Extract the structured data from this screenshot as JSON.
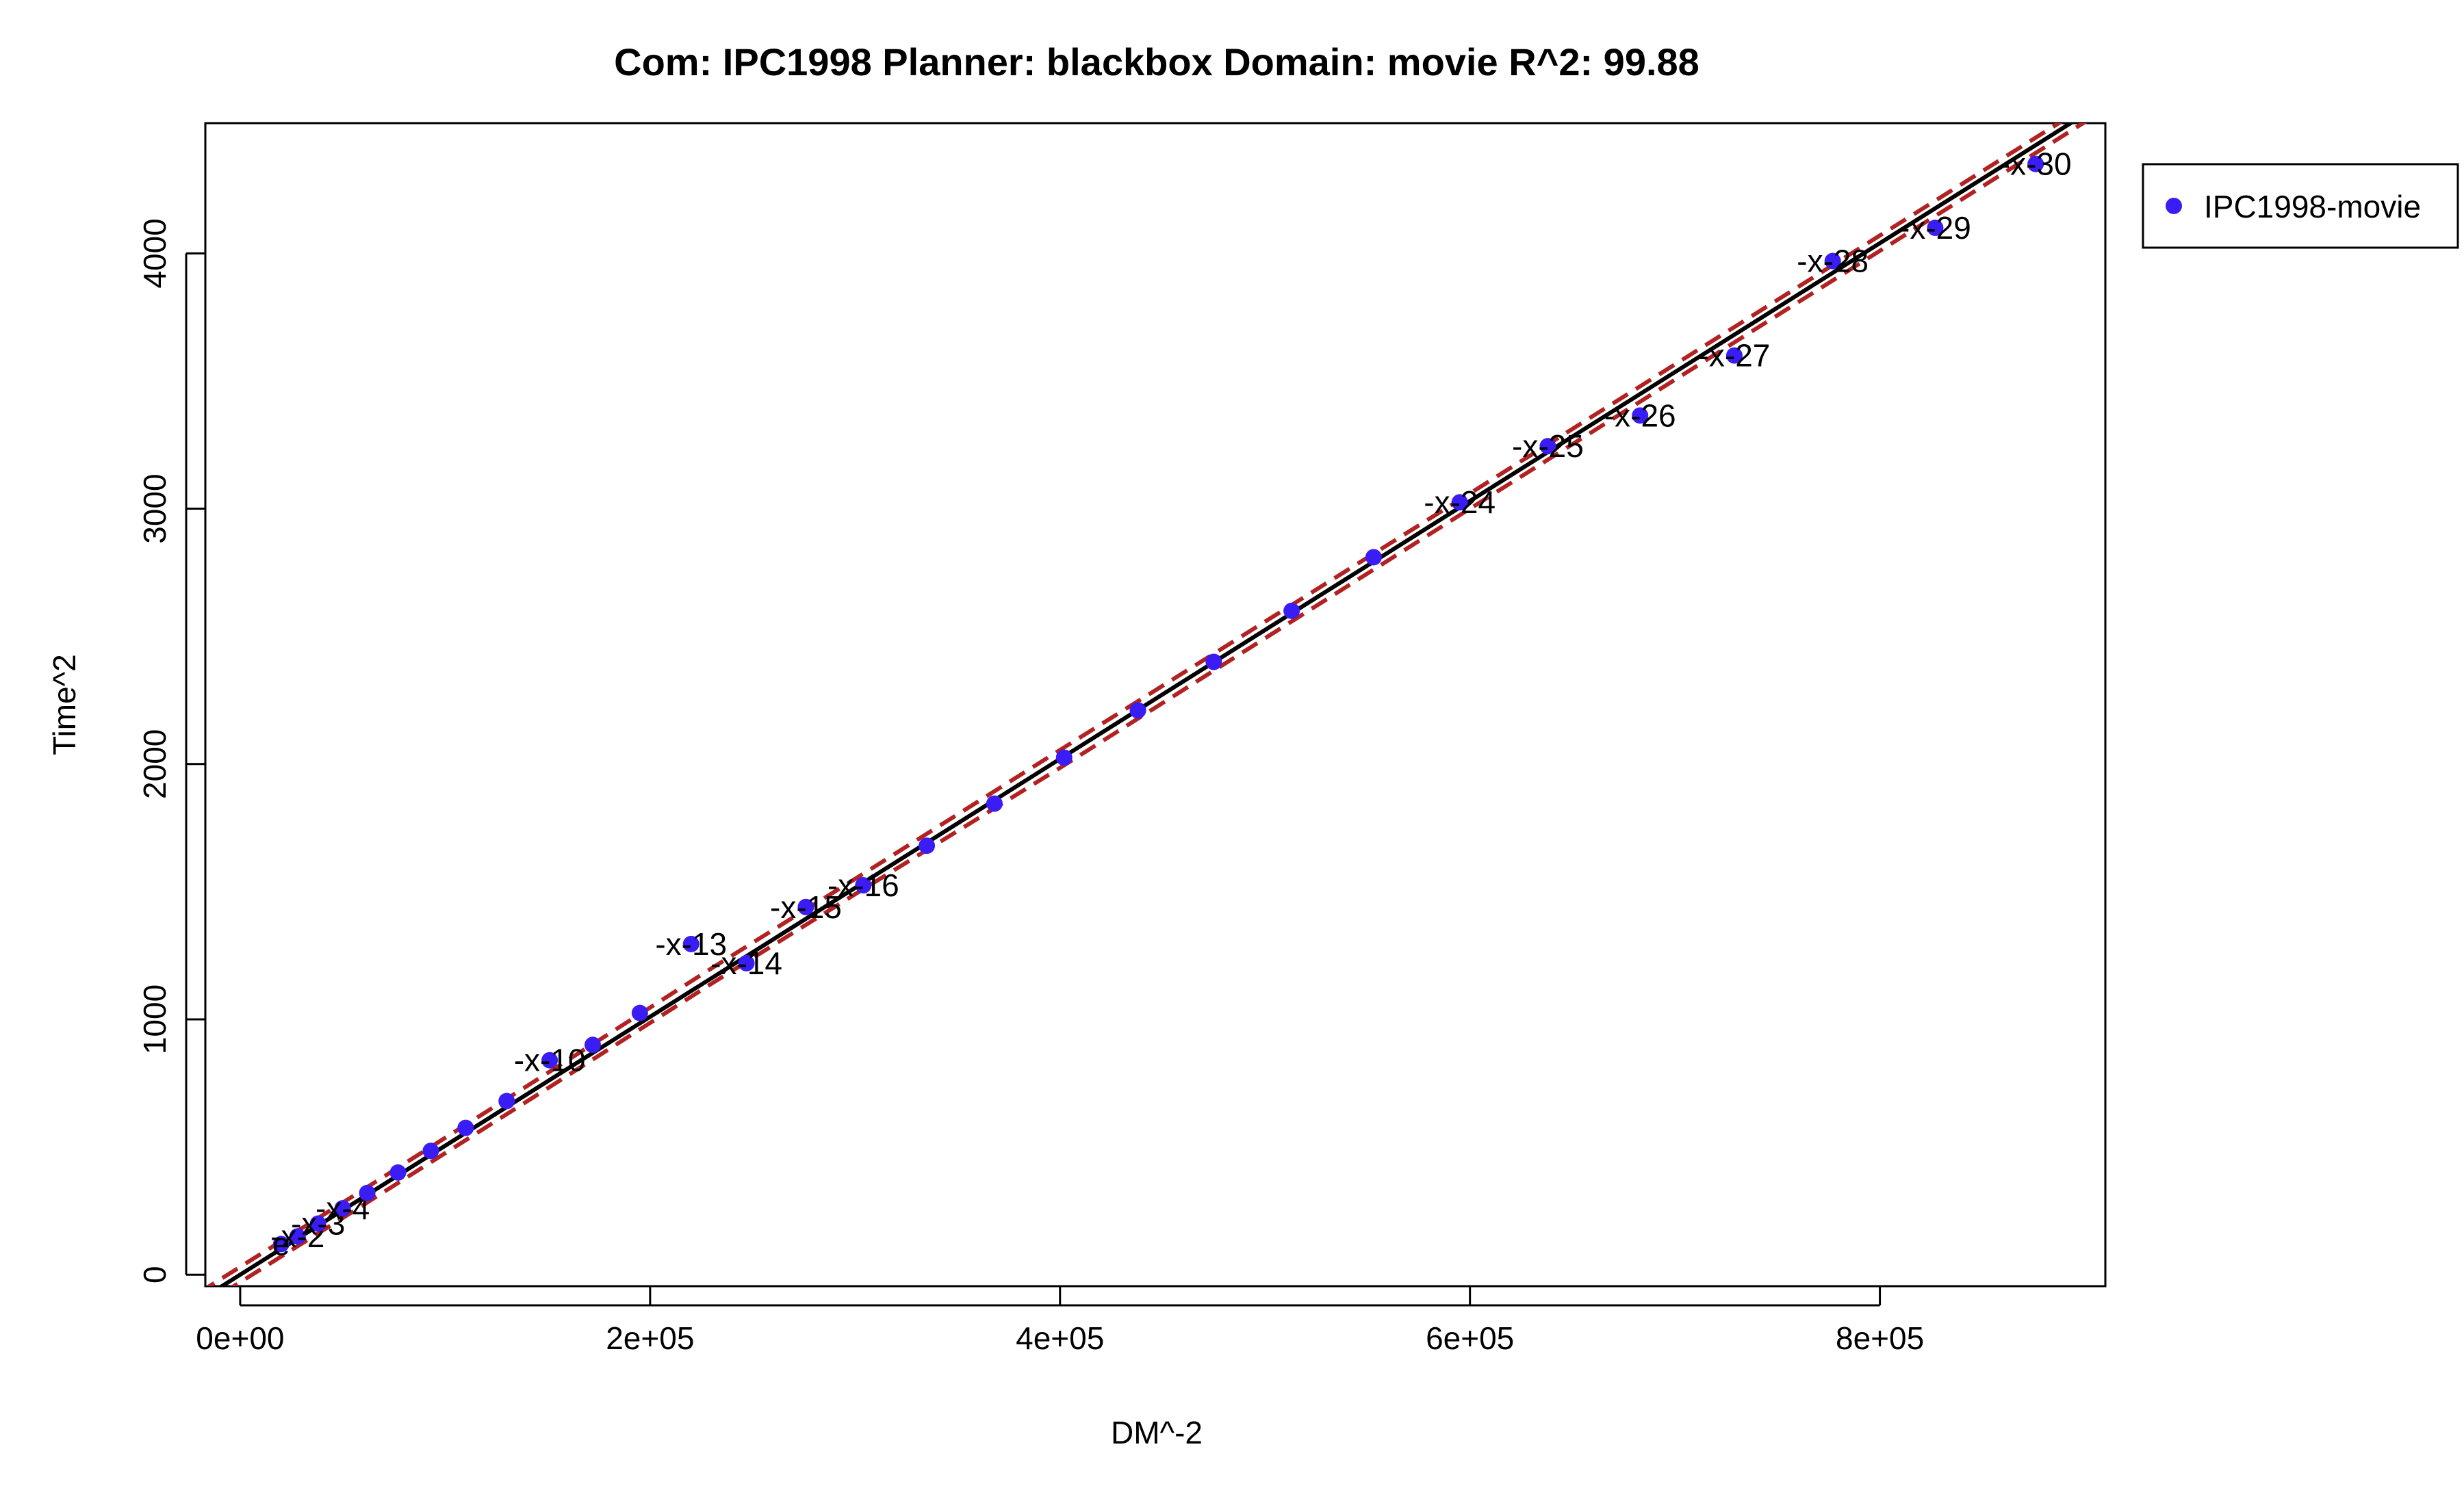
{
  "chart_data": {
    "type": "scatter",
    "title": "Com: IPC1998 Planner: blackbox Domain: movie R^2: 99.88",
    "xlabel": "DM^-2",
    "ylabel": "Time^2",
    "xlim": [
      -17000,
      910000
    ],
    "ylim": [
      -45000,
      4510
    ],
    "x_ticks": [
      {
        "value": 0,
        "label": "0e+00"
      },
      {
        "value": 200000,
        "label": "2e+05"
      },
      {
        "value": 400000,
        "label": "4e+05"
      },
      {
        "value": 600000,
        "label": "6e+05"
      },
      {
        "value": 800000,
        "label": "8e+05"
      }
    ],
    "y_ticks": [
      {
        "value": 0,
        "label": "0"
      },
      {
        "value": 1000,
        "label": "1000"
      },
      {
        "value": 2000,
        "label": "2000"
      },
      {
        "value": 3000,
        "label": "3000"
      },
      {
        "value": 4000,
        "label": "4000"
      }
    ],
    "legend": {
      "position": "top-right",
      "entries": [
        {
          "label": "IPC1998-movie",
          "color": "#3a1cf5"
        }
      ]
    },
    "colors": {
      "points": "#3a1cf5",
      "fit_line": "#000000",
      "band": "#b22222"
    },
    "series": [
      {
        "name": "IPC1998-movie",
        "points": [
          {
            "x": 20000,
            "y": 120,
            "label": "e"
          },
          {
            "x": 28000,
            "y": 150,
            "label": "-x-2"
          },
          {
            "x": 38000,
            "y": 200,
            "label": "-x-3"
          },
          {
            "x": 50000,
            "y": 260,
            "label": "-x-4"
          },
          {
            "x": 62000,
            "y": 320,
            "label": ""
          },
          {
            "x": 77000,
            "y": 400,
            "label": ""
          },
          {
            "x": 93000,
            "y": 485,
            "label": ""
          },
          {
            "x": 110000,
            "y": 575,
            "label": ""
          },
          {
            "x": 130000,
            "y": 680,
            "label": ""
          },
          {
            "x": 151000,
            "y": 840,
            "label": "-x-10"
          },
          {
            "x": 172000,
            "y": 900,
            "label": ""
          },
          {
            "x": 195000,
            "y": 1025,
            "label": ""
          },
          {
            "x": 220000,
            "y": 1295,
            "label": "-x-13"
          },
          {
            "x": 247000,
            "y": 1220,
            "label": "-x-14"
          },
          {
            "x": 276000,
            "y": 1440,
            "label": "-x-15"
          },
          {
            "x": 304000,
            "y": 1525,
            "label": "-x-16"
          },
          {
            "x": 335000,
            "y": 1680,
            "label": ""
          },
          {
            "x": 368000,
            "y": 1845,
            "label": ""
          },
          {
            "x": 402000,
            "y": 2025,
            "label": ""
          },
          {
            "x": 438000,
            "y": 2210,
            "label": ""
          },
          {
            "x": 475000,
            "y": 2400,
            "label": ""
          },
          {
            "x": 513000,
            "y": 2600,
            "label": ""
          },
          {
            "x": 553000,
            "y": 2810,
            "label": ""
          },
          {
            "x": 595000,
            "y": 3025,
            "label": "-x-24"
          },
          {
            "x": 638000,
            "y": 3245,
            "label": "-x-25"
          },
          {
            "x": 683000,
            "y": 3365,
            "label": "-x-26"
          },
          {
            "x": 729000,
            "y": 3600,
            "label": "-x-27"
          },
          {
            "x": 777000,
            "y": 3970,
            "label": "-x-28"
          },
          {
            "x": 827000,
            "y": 4100,
            "label": "-x-29"
          },
          {
            "x": 876000,
            "y": 4350,
            "label": "-x-30"
          }
        ]
      }
    ],
    "fit": {
      "intercept": 0,
      "slope": 0.00505
    },
    "band": [
      {
        "x": -20000,
        "lower": -130,
        "upper": -70
      },
      {
        "x": 50000,
        "lower": 222,
        "upper": 282
      },
      {
        "x": 150000,
        "lower": 730,
        "upper": 790
      },
      {
        "x": 230000,
        "lower": 1140,
        "upper": 1200
      },
      {
        "x": 300000,
        "lower": 1490,
        "upper": 1550
      },
      {
        "x": 400000,
        "lower": 1985,
        "upper": 2055
      },
      {
        "x": 600000,
        "lower": 3000,
        "upper": 3060
      },
      {
        "x": 800000,
        "lower": 4010,
        "upper": 4070
      },
      {
        "x": 920000,
        "lower": 4615,
        "upper": 4675
      }
    ]
  }
}
